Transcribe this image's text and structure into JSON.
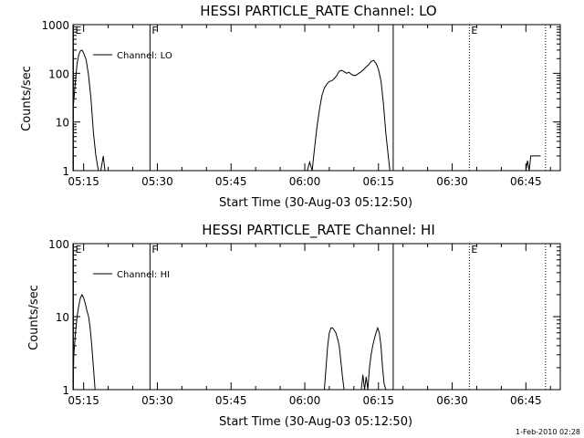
{
  "footer": {
    "timestamp": "1-Feb-2010 02:28"
  },
  "chart_data": [
    {
      "type": "line",
      "title": "HESSI PARTICLE_RATE Channel: LO",
      "xlabel": "Start Time (30-Aug-03 05:12:50)",
      "ylabel": "Counts/sec",
      "yscale": "log",
      "xlim": [
        "05:12:50",
        "06:52:00"
      ],
      "ylim": [
        1,
        1000
      ],
      "xticks": [
        "05:15",
        "05:30",
        "05:45",
        "06:00",
        "06:15",
        "06:30",
        "06:45"
      ],
      "yticks": [
        1,
        10,
        100,
        1000
      ],
      "ytick_labels": [
        "1",
        "10",
        "100",
        "1000"
      ],
      "legend": {
        "placement": "top-left",
        "entries": [
          "Channel: LO"
        ]
      },
      "markers": [
        {
          "time": "05:12:55",
          "label": "E",
          "style": "solid"
        },
        {
          "time": "05:28:30",
          "label": "F",
          "style": "solid"
        },
        {
          "time": "06:18:00",
          "label": "",
          "style": "solid"
        },
        {
          "time": "06:33:30",
          "label": "E",
          "style": "dotted"
        },
        {
          "time": "06:49:00",
          "label": "",
          "style": "dotted"
        }
      ],
      "series": [
        {
          "name": "Channel: LO",
          "x": [
            "05:12:50",
            "05:13:00",
            "05:13:20",
            "05:13:40",
            "05:14:00",
            "05:14:20",
            "05:14:40",
            "05:15:00",
            "05:15:30",
            "05:16:00",
            "05:16:30",
            "05:17:00",
            "05:17:30",
            "05:18:00",
            "05:18:30",
            "05:19:00",
            "05:19:20",
            "06:00:30",
            "06:01:00",
            "06:01:30",
            "06:02:00",
            "06:02:30",
            "06:03:00",
            "06:03:30",
            "06:04:00",
            "06:04:30",
            "06:05:00",
            "06:05:30",
            "06:06:00",
            "06:06:30",
            "06:07:00",
            "06:07:30",
            "06:08:00",
            "06:08:30",
            "06:09:00",
            "06:09:30",
            "06:10:00",
            "06:10:30",
            "06:11:00",
            "06:11:30",
            "06:12:00",
            "06:12:30",
            "06:13:00",
            "06:13:30",
            "06:14:00",
            "06:14:30",
            "06:15:00",
            "06:15:30",
            "06:16:00",
            "06:16:30",
            "06:17:00",
            "06:17:20",
            "06:45:00",
            "06:45:20",
            "06:45:40",
            "06:46:00",
            "06:46:30",
            "06:47:00",
            "06:47:30",
            "06:48:00"
          ],
          "values": [
            18,
            28,
            70,
            160,
            240,
            290,
            300,
            260,
            190,
            90,
            30,
            6,
            2,
            1,
            1,
            2,
            1,
            1,
            1.5,
            1,
            3,
            8,
            18,
            35,
            50,
            60,
            68,
            70,
            78,
            90,
            110,
            115,
            108,
            100,
            105,
            95,
            90,
            92,
            100,
            108,
            120,
            135,
            150,
            175,
            185,
            160,
            120,
            70,
            25,
            6,
            2,
            1,
            1,
            1.6,
            1,
            2,
            2,
            2,
            2,
            2
          ]
        }
      ]
    },
    {
      "type": "line",
      "title": "HESSI PARTICLE_RATE Channel: HI",
      "xlabel": "Start Time (30-Aug-03 05:12:50)",
      "ylabel": "Counts/sec",
      "yscale": "log",
      "xlim": [
        "05:12:50",
        "06:52:00"
      ],
      "ylim": [
        1,
        100
      ],
      "xticks": [
        "05:15",
        "05:30",
        "05:45",
        "06:00",
        "06:15",
        "06:30",
        "06:45"
      ],
      "yticks": [
        1,
        10,
        100
      ],
      "ytick_labels": [
        "1",
        "10",
        "100"
      ],
      "legend": {
        "placement": "top-left",
        "entries": [
          "Channel: HI"
        ]
      },
      "markers": [
        {
          "time": "05:12:55",
          "label": "E",
          "style": "solid"
        },
        {
          "time": "05:28:30",
          "label": "F",
          "style": "solid"
        },
        {
          "time": "06:18:00",
          "label": "",
          "style": "solid"
        },
        {
          "time": "06:33:30",
          "label": "E",
          "style": "dotted"
        },
        {
          "time": "06:49:00",
          "label": "",
          "style": "dotted"
        }
      ],
      "series": [
        {
          "name": "Channel: HI",
          "x": [
            "05:12:50",
            "05:13:00",
            "05:13:20",
            "05:13:40",
            "05:14:00",
            "05:14:20",
            "05:14:40",
            "05:15:00",
            "05:15:20",
            "05:15:40",
            "05:16:00",
            "05:16:20",
            "05:16:40",
            "05:17:00",
            "05:17:20",
            "06:04:00",
            "06:04:20",
            "06:04:40",
            "06:05:00",
            "06:05:20",
            "06:05:40",
            "06:06:00",
            "06:06:20",
            "06:06:40",
            "06:07:00",
            "06:07:20",
            "06:07:40",
            "06:08:00",
            "06:11:30",
            "06:11:50",
            "06:12:10",
            "06:12:30",
            "06:12:50",
            "06:13:10",
            "06:13:30",
            "06:13:50",
            "06:14:10",
            "06:14:30",
            "06:14:50",
            "06:15:10",
            "06:15:30",
            "06:15:50",
            "06:16:10",
            "06:16:30"
          ],
          "values": [
            1,
            3,
            6,
            10,
            14,
            18,
            20,
            18,
            15,
            12,
            10,
            7,
            4,
            2,
            1,
            1,
            2,
            4,
            6,
            7,
            7,
            6.5,
            6,
            5,
            4,
            2.5,
            1.5,
            1,
            1,
            1.6,
            1,
            1.5,
            1,
            2,
            3,
            4,
            5,
            6,
            7,
            6,
            4,
            2,
            1.2,
            1
          ]
        }
      ]
    }
  ]
}
